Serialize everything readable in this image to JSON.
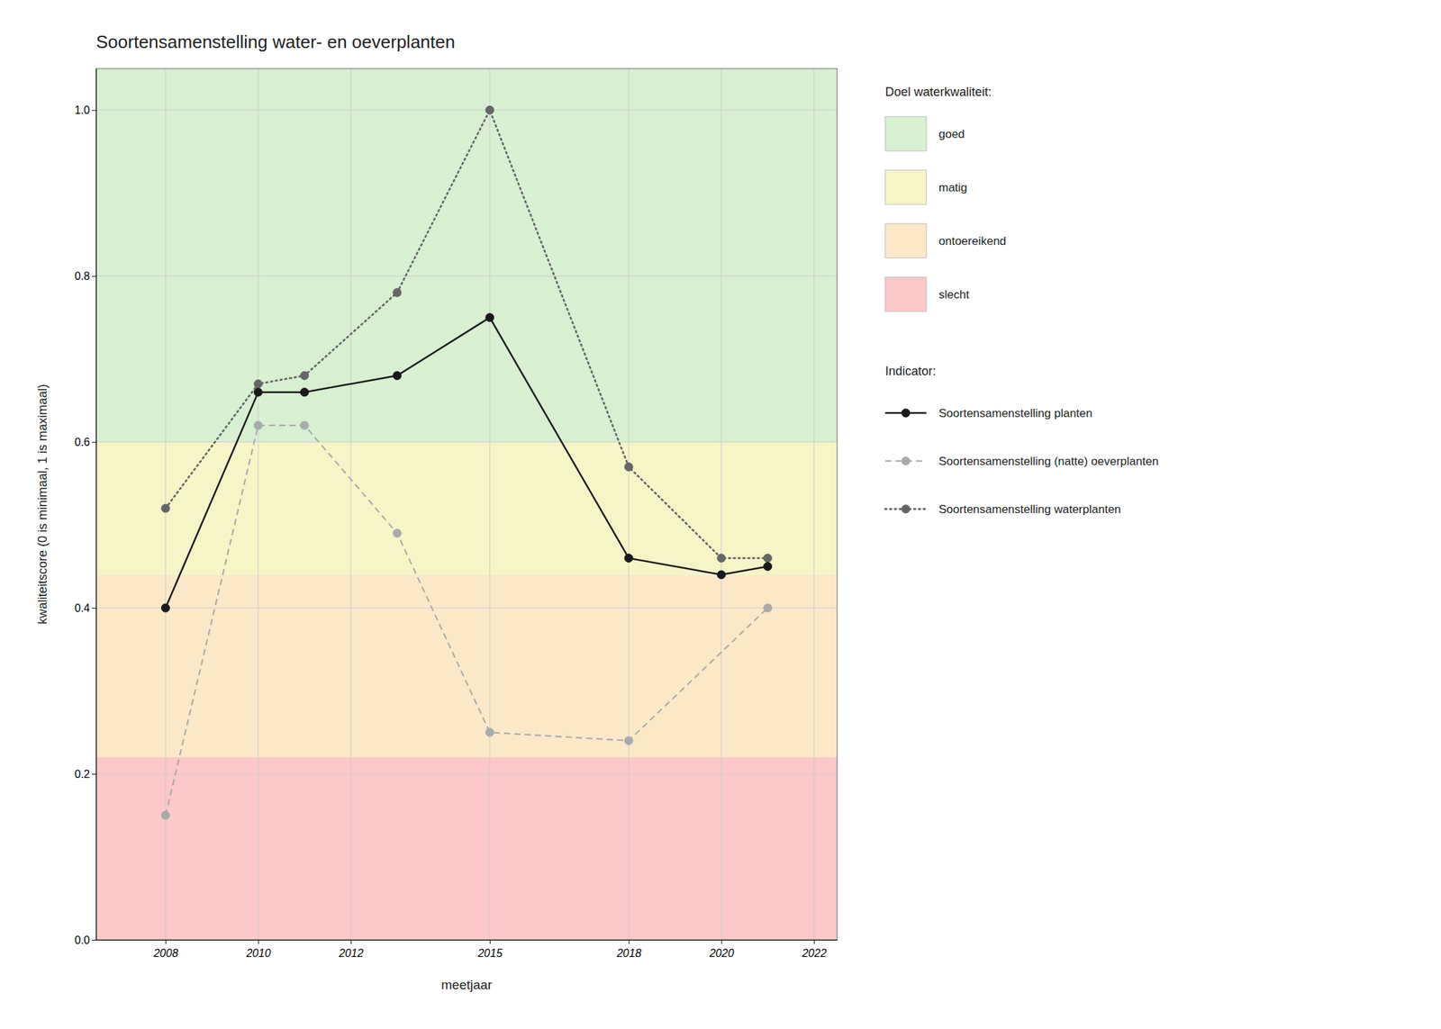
{
  "chart_data": {
    "type": "line",
    "title": "Soortensamenstelling water- en oeverplanten",
    "xlabel": "meetjaar",
    "ylabel": "kwaliteitscore (0 is minimaal, 1 is maximaal)",
    "xlim": [
      2006.5,
      2022.5
    ],
    "ylim": [
      0.0,
      1.05
    ],
    "xticks": [
      2008,
      2010,
      2012,
      2015,
      2018,
      2020,
      2022
    ],
    "yticks": [
      {
        "value": 0.0,
        "label": "0.0"
      },
      0.2,
      0.4,
      0.6,
      0.8,
      {
        "value": 1.0,
        "label": "1.0"
      }
    ],
    "grid": true,
    "legend": "right",
    "zones_title": "Doel waterkwaliteit:",
    "zones": [
      {
        "name": "goed",
        "color": "#d6f0d0",
        "range": [
          0.6,
          1.05
        ]
      },
      {
        "name": "matig",
        "color": "#f5f5c8",
        "range": [
          0.44,
          0.6
        ]
      },
      {
        "name": "ontoereikend",
        "color": "#fce8c8",
        "range": [
          0.22,
          0.44
        ]
      },
      {
        "name": "slecht",
        "color": "#fcc8c8",
        "range": [
          0.0,
          0.22
        ]
      }
    ],
    "series_title": "Indicator:",
    "series": [
      {
        "name": "Soortensamenstelling planten",
        "color": "#1a1a1a",
        "line_style": "solid",
        "marker": "circle",
        "x": [
          2008,
          2010,
          2011,
          2013,
          2015,
          2018,
          2020,
          2021
        ],
        "values": [
          0.4,
          0.66,
          0.66,
          0.68,
          0.75,
          0.46,
          0.44,
          0.45
        ]
      },
      {
        "name": "Soortensamenstelling (natte) oeverplanten",
        "color": "#aaaaaa",
        "line_style": "dashed",
        "marker": "circle",
        "x": [
          2008,
          2010,
          2011,
          2013,
          2015,
          2018,
          2021
        ],
        "values": [
          0.15,
          0.62,
          0.62,
          0.49,
          0.25,
          0.24,
          0.4
        ]
      },
      {
        "name": "Soortensamenstelling waterplanten",
        "color": "#666666",
        "line_style": "dotted",
        "marker": "circle",
        "x": [
          2008,
          2010,
          2011,
          2013,
          2015,
          2018,
          2020,
          2021
        ],
        "values": [
          0.52,
          0.67,
          0.68,
          0.78,
          1.0,
          0.57,
          0.46,
          0.46
        ]
      }
    ]
  }
}
